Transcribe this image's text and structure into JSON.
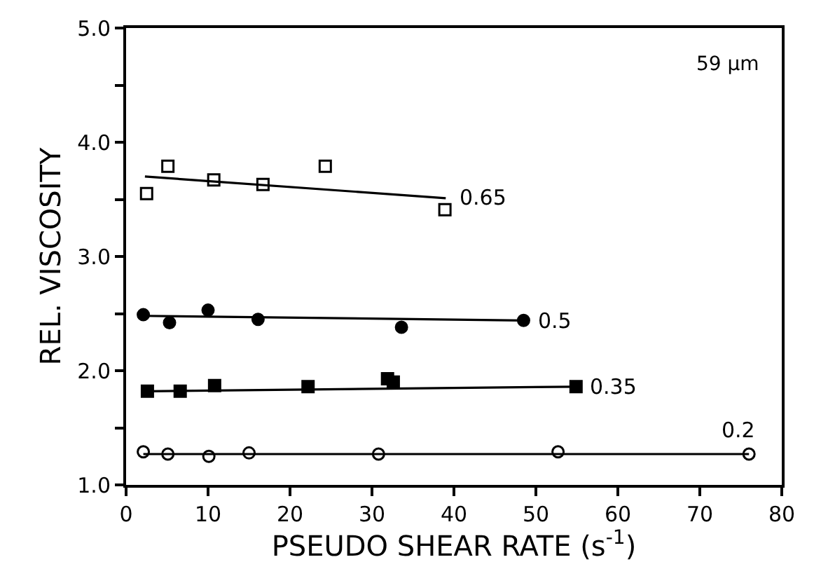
{
  "chart_data": {
    "type": "scatter",
    "xlabel": "PSEUDO SHEAR RATE (s$^{-1}$)",
    "ylabel": "REL. VISCOSITY",
    "xlim": [
      0,
      80
    ],
    "xticks": [
      0,
      10,
      20,
      30,
      40,
      50,
      60,
      70,
      80
    ],
    "ylim": [
      1.0,
      5.0
    ],
    "yticks": [
      {
        "value": 1.0,
        "label": "1.0"
      },
      {
        "value": 1.5,
        "label": null
      },
      {
        "value": 2.0,
        "label": "2.0"
      },
      {
        "value": 2.5,
        "label": null
      },
      {
        "value": 3.0,
        "label": "3.0"
      },
      {
        "value": 3.5,
        "label": null
      },
      {
        "value": 4.0,
        "label": "4.0"
      },
      {
        "value": 4.5,
        "label": null
      },
      {
        "value": 5.0,
        "label": "5.0"
      }
    ],
    "legend": false,
    "annotations": [
      "59 µm"
    ],
    "series": [
      {
        "marker": "square-open",
        "color": "#000000",
        "x": [
          2.5,
          5.1,
          10.7,
          16.7,
          24.3,
          38.9
        ],
        "values": [
          3.55,
          3.79,
          3.67,
          3.63,
          3.79,
          3.41
        ]
      },
      {
        "type": "line",
        "name": "0.65",
        "color": "#000000",
        "x": [
          2.3,
          39
        ],
        "values": [
          3.7,
          3.51
        ]
      },
      {
        "marker": "circle",
        "color": "#000000",
        "x": [
          2.1,
          5.3,
          10.0,
          16.1,
          33.6,
          48.5
        ],
        "values": [
          2.49,
          2.42,
          2.53,
          2.45,
          2.38,
          2.44
        ]
      },
      {
        "type": "line",
        "name": "0.5",
        "color": "#000000",
        "x": [
          2.1,
          48.5
        ],
        "values": [
          2.48,
          2.44
        ]
      },
      {
        "marker": "square",
        "color": "#000000",
        "x": [
          2.6,
          6.6,
          10.8,
          22.2,
          31.9,
          32.6,
          54.9
        ],
        "values": [
          1.82,
          1.82,
          1.87,
          1.86,
          1.93,
          1.9,
          1.86
        ]
      },
      {
        "type": "line",
        "name": "0.35",
        "color": "#000000",
        "x": [
          2.6,
          54.9
        ],
        "values": [
          1.82,
          1.86
        ]
      },
      {
        "marker": "circle-open",
        "color": "#000000",
        "x": [
          2.1,
          5.1,
          10.1,
          15.0,
          30.8,
          52.7,
          76.0
        ],
        "values": [
          1.29,
          1.27,
          1.25,
          1.28,
          1.27,
          1.29,
          1.27
        ]
      },
      {
        "type": "line",
        "name": "0.2",
        "color": "#000000",
        "x": [
          2.1,
          76.0
        ],
        "values": [
          1.27,
          1.27
        ]
      }
    ]
  }
}
